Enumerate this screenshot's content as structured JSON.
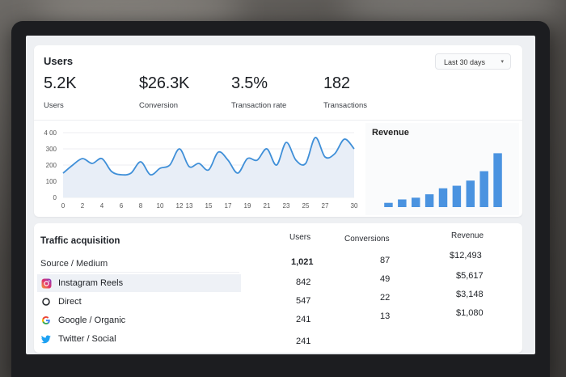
{
  "users_card": {
    "title": "Users",
    "date_range": "Last 30 days",
    "kpis": [
      {
        "value": "5.2K",
        "label": "Users"
      },
      {
        "value": "$26.3K",
        "label": "Conversion"
      },
      {
        "value": "3.5%",
        "label": "Transaction rate"
      },
      {
        "value": "182",
        "label": "Transactions"
      }
    ],
    "chart_data": {
      "type": "area",
      "y_ticks": [
        "4 00",
        "300",
        "200",
        "100",
        "0"
      ],
      "x_ticks": [
        "0",
        "2",
        "4",
        "6",
        "8",
        "10",
        "12",
        "13",
        "15",
        "17",
        "19",
        "21",
        "23",
        "25",
        "27",
        "30"
      ],
      "ylim": [
        0,
        400
      ],
      "x": [
        0,
        1,
        2,
        3,
        4,
        5,
        6,
        7,
        8,
        9,
        10,
        11,
        12,
        13,
        14,
        15,
        16,
        17,
        18,
        19,
        20,
        21,
        22,
        23,
        24,
        25,
        26,
        27,
        28,
        29,
        30
      ],
      "values": [
        150,
        200,
        240,
        210,
        240,
        160,
        140,
        150,
        220,
        140,
        180,
        200,
        300,
        190,
        210,
        170,
        280,
        230,
        150,
        240,
        230,
        300,
        200,
        340,
        230,
        210,
        370,
        250,
        270,
        360,
        300
      ]
    }
  },
  "revenue": {
    "title": "Revenue",
    "chart_data": {
      "type": "bar",
      "values": [
        5,
        9,
        11,
        15,
        22,
        25,
        31,
        42,
        63
      ],
      "ylim": [
        0,
        70
      ]
    }
  },
  "traffic": {
    "title": "Traffic acquisition",
    "source_header": "Source / Medium",
    "headers": {
      "users": "Users",
      "conversions": "Conversions",
      "revenue": "Revenue"
    },
    "rows": [
      {
        "icon": "instagram-icon",
        "name": "Instagram Reels",
        "users": "842",
        "conversions": "49",
        "revenue": "$5,617"
      },
      {
        "icon": "circle-icon",
        "name": "Direct",
        "users": "547",
        "conversions": "22",
        "revenue": "$3,148"
      },
      {
        "icon": "google-icon",
        "name": "Google / Organic",
        "users": "241",
        "conversions": "13",
        "revenue": "$1,080"
      },
      {
        "icon": "twitter-icon",
        "name": "Twitter / Social",
        "users": "241",
        "conversions": "",
        "revenue": ""
      }
    ],
    "totals": {
      "users": "1,021",
      "conversions": "87",
      "revenue": "$12,493"
    }
  },
  "colors": {
    "accent": "#3f8fd8",
    "bar": "#4a93e0"
  }
}
